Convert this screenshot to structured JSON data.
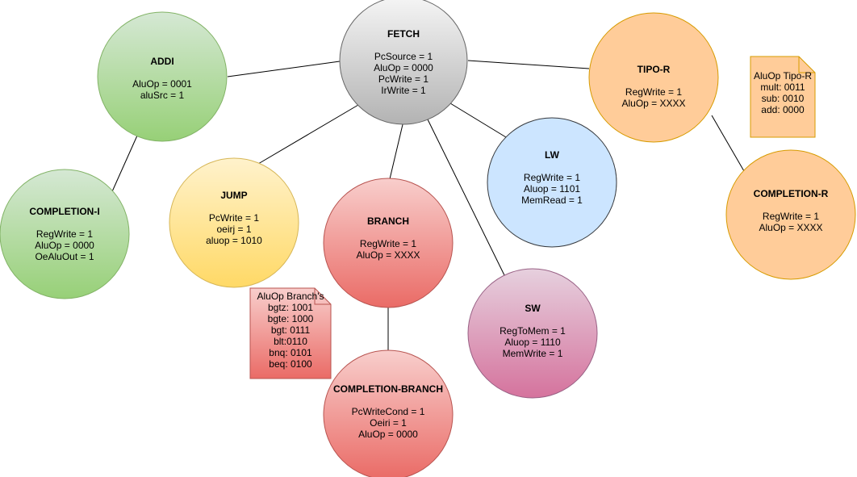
{
  "nodes": {
    "fetch": {
      "title": "FETCH",
      "lines": [
        "PcSource = 1",
        "AluOp = 0000",
        "PcWrite = 1",
        "IrWrite = 1"
      ]
    },
    "addi": {
      "title": "ADDI",
      "lines": [
        "AluOp = 0001",
        "aluSrc = 1"
      ]
    },
    "tipo_r": {
      "title": "TIPO-R",
      "lines": [
        "RegWrite = 1",
        "AluOp = XXXX"
      ]
    },
    "completion_i": {
      "title": "COMPLETION-I",
      "lines": [
        "RegWrite = 1",
        "AluOp = 0000",
        "OeAluOut = 1"
      ]
    },
    "jump": {
      "title": "JUMP",
      "lines": [
        "PcWrite = 1",
        "oeirj = 1",
        "aluop = 1010"
      ]
    },
    "branch": {
      "title": "BRANCH",
      "lines": [
        "RegWrite = 1",
        "AluOp = XXXX"
      ]
    },
    "lw": {
      "title": "LW",
      "lines": [
        "RegWrite = 1",
        "Aluop = 1101",
        "MemRead = 1"
      ]
    },
    "completion_r": {
      "title": "COMPLETION-R",
      "lines": [
        "RegWrite = 1",
        "AluOp = XXXX"
      ]
    },
    "sw": {
      "title": "SW",
      "lines": [
        "RegToMem = 1",
        "Aluop = 1110",
        "MemWrite = 1"
      ]
    },
    "completion_branch": {
      "title": "COMPLETION-BRANCH",
      "lines": [
        "PcWriteCond = 1",
        "Oeiri = 1",
        "AluOp = 0000"
      ]
    }
  },
  "notes": {
    "tipo_r_note": {
      "lines": [
        "AluOp Tipo-R",
        "mult: 0011",
        "sub: 0010",
        "add: 0000"
      ]
    },
    "branch_note": {
      "lines": [
        "AluOp Branch's",
        "bgtz: 1001",
        "bgte: 1000",
        "bgt: 0111",
        "blt:0110",
        "bnq: 0101",
        "beq: 0100"
      ]
    }
  },
  "colors": {
    "green_fill_top": "#d5e8d4",
    "green_fill_bottom": "#97d077",
    "green_stroke": "#82b366",
    "grey_fill_top": "#f5f5f5",
    "grey_fill_bottom": "#b3b3b3",
    "grey_stroke": "#666666",
    "orange_fill": "#ffcc99",
    "orange_stroke": "#d79b00",
    "yellow_fill_top": "#fff2cc",
    "yellow_fill_bottom": "#ffd966",
    "yellow_stroke": "#d6b656",
    "red_fill_top": "#f8cecc",
    "red_fill_bottom": "#ea6b66",
    "red_stroke": "#b85450",
    "blue_fill": "#cce5ff",
    "blue_stroke": "#36393d",
    "purple_fill_top": "#e6d0de",
    "purple_fill_bottom": "#d5739d",
    "purple_stroke": "#996185"
  }
}
